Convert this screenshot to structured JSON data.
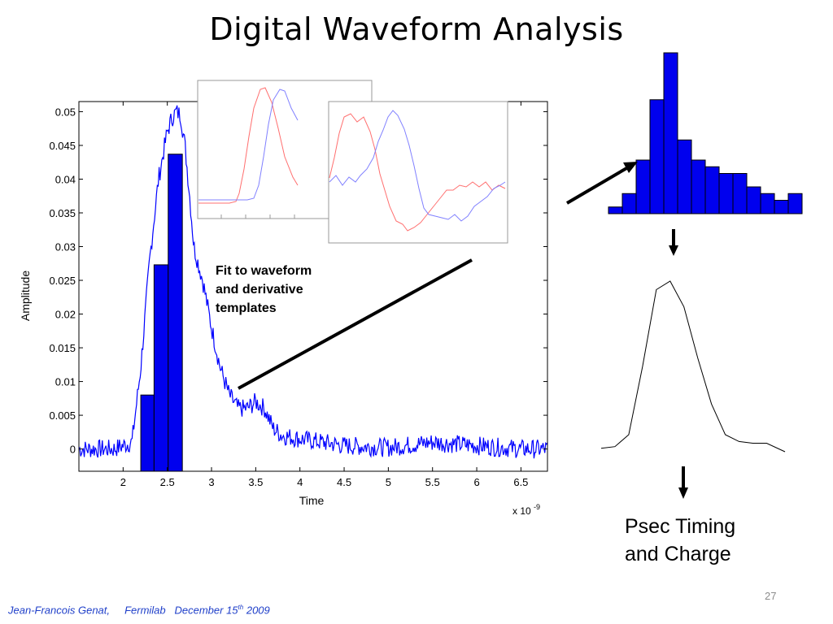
{
  "slide": {
    "title": "Digital Waveform Analysis",
    "annotation": [
      "Fit to waveform",
      "and derivative",
      "templates"
    ],
    "result_text": [
      "Psec Timing",
      "and Charge"
    ],
    "page_number": "27",
    "footer": {
      "author": "Jean-Francois Genat,",
      "lab": "Fermilab",
      "date_prefix": "December 15",
      "date_sup": "th",
      "year": "2009"
    }
  },
  "colors": {
    "signal": "#0000ff",
    "bar_fill": "#0000ee",
    "template_red": "#ff6f6f",
    "template_blue": "#8080ff",
    "axis": "#000000",
    "footer": "#1f3fc9"
  },
  "chart_data": [
    {
      "id": "main-waveform",
      "type": "line+bar",
      "xlabel": "Time",
      "ylabel": "Amplitude",
      "x_multiplier": "x 10",
      "x_multiplier_exp": "-9",
      "xlim": [
        1.5,
        6.8
      ],
      "ylim": [
        -0.0033,
        0.0515
      ],
      "xticks": [
        "2",
        "2.5",
        "3",
        "3.5",
        "4",
        "4.5",
        "5",
        "5.5",
        "6",
        "6.5"
      ],
      "yticks": [
        "0",
        "0.005",
        "0.01",
        "0.015",
        "0.02",
        "0.025",
        "0.03",
        "0.035",
        "0.04",
        "0.045",
        "0.05"
      ],
      "series": [
        {
          "values": {
            "x": [
              1.5,
              1.9,
              2.0,
              2.1,
              2.2,
              2.3,
              2.4,
              2.5,
              2.55,
              2.6,
              2.65,
              2.7,
              2.75,
              2.8,
              2.9,
              3.0,
              3.1,
              3.2,
              3.3,
              3.4,
              3.5,
              3.6,
              3.7,
              3.8,
              4.0,
              4.5,
              5.0,
              5.5,
              6.0,
              6.5,
              6.8
            ],
            "y": [
              0.0,
              0.0,
              0.0005,
              0.001,
              0.012,
              0.028,
              0.04,
              0.047,
              0.049,
              0.05,
              0.0495,
              0.045,
              0.038,
              0.03,
              0.025,
              0.018,
              0.012,
              0.008,
              0.006,
              0.006,
              0.007,
              0.006,
              0.003,
              0.002,
              0.0015,
              0.0005,
              0.0002,
              0.001,
              0.0005,
              0.0,
              0.0
            ]
          }
        }
      ],
      "bars": [
        {
          "x0": 2.2,
          "x1": 2.35,
          "value": 0.008
        },
        {
          "x0": 2.35,
          "x1": 2.51,
          "value": 0.0273
        },
        {
          "x0": 2.51,
          "x1": 2.67,
          "value": 0.0437
        }
      ]
    },
    {
      "id": "histogram",
      "type": "bar",
      "values": [
        1,
        3,
        8,
        17,
        24,
        11,
        8,
        7,
        6,
        6,
        4,
        3,
        2,
        3
      ]
    },
    {
      "id": "fitted-pulse",
      "type": "line",
      "x": [
        0,
        0.15,
        0.3,
        0.45,
        0.6,
        0.75,
        0.9,
        1.05,
        1.2,
        1.35,
        1.5,
        1.65,
        1.8,
        2.0
      ],
      "y": [
        0.02,
        0.03,
        0.1,
        0.5,
        0.95,
        1.0,
        0.85,
        0.55,
        0.28,
        0.1,
        0.06,
        0.05,
        0.05,
        0.0
      ]
    }
  ]
}
